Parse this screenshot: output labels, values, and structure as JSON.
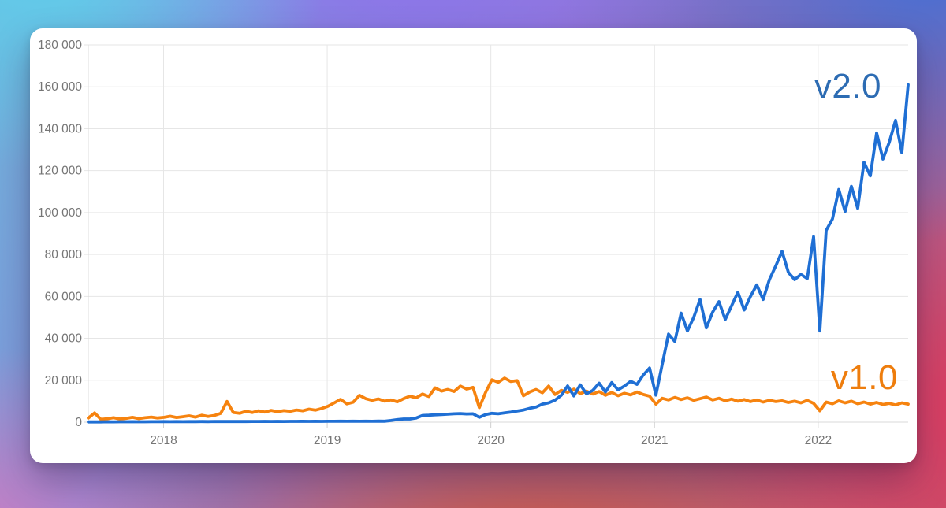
{
  "colors": {
    "v2_line": "#1f6fd4",
    "v2_label": "#2d6cb3",
    "v1_line": "#f6830f",
    "v1_label": "#ee7d0d",
    "grid": "#e6e6e6",
    "axis_boundary": "#dcdcdc",
    "tick_stub": "#cfcfcf",
    "axis_text": "#757575"
  },
  "chart_data": {
    "type": "line",
    "title": "",
    "xlabel": "",
    "ylabel": "",
    "grid": true,
    "legend_position": "inline labels at line ends (right side)",
    "xlim": [
      2017.54,
      2022.55
    ],
    "ylim": [
      0,
      180000
    ],
    "x_start": 2017.54,
    "x_step": 0.03854,
    "x_ticks": [
      {
        "value": 2018,
        "label": "2018"
      },
      {
        "value": 2019,
        "label": "2019"
      },
      {
        "value": 2020,
        "label": "2020"
      },
      {
        "value": 2021,
        "label": "2021"
      },
      {
        "value": 2022,
        "label": "2022"
      }
    ],
    "y_ticks": [
      {
        "value": 0,
        "label": "0"
      },
      {
        "value": 20000,
        "label": "20 000"
      },
      {
        "value": 40000,
        "label": "40 000"
      },
      {
        "value": 60000,
        "label": "60 000"
      },
      {
        "value": 80000,
        "label": "80 000"
      },
      {
        "value": 100000,
        "label": "100 000"
      },
      {
        "value": 120000,
        "label": "120 000"
      },
      {
        "value": 140000,
        "label": "140 000"
      },
      {
        "value": 160000,
        "label": "160 000"
      },
      {
        "value": 180000,
        "label": "180 000"
      }
    ],
    "series": [
      {
        "name": "v2.0",
        "color": "#1f6fd4",
        "label_color": "#2d6cb3",
        "values": [
          100,
          150,
          120,
          180,
          150,
          200,
          170,
          220,
          200,
          180,
          230,
          210,
          250,
          220,
          260,
          240,
          280,
          250,
          300,
          270,
          320,
          290,
          330,
          300,
          340,
          310,
          350,
          330,
          360,
          340,
          380,
          350,
          390,
          360,
          400,
          380,
          420,
          390,
          430,
          400,
          440,
          410,
          450,
          420,
          460,
          430,
          480,
          450,
          800,
          1200,
          1500,
          1500,
          2000,
          3200,
          3300,
          3500,
          3600,
          3800,
          4000,
          4100,
          3900,
          4000,
          2300,
          3600,
          4200,
          4000,
          4400,
          4800,
          5300,
          5800,
          6600,
          7200,
          8600,
          9200,
          10500,
          12800,
          17300,
          12500,
          17800,
          13500,
          15200,
          18600,
          14400,
          18900,
          15400,
          17200,
          19500,
          18000,
          22500,
          25800,
          12900,
          27500,
          42000,
          38500,
          52000,
          43500,
          50000,
          58500,
          45000,
          52500,
          57500,
          49000,
          55500,
          62000,
          53500,
          60000,
          65500,
          58500,
          68000,
          74500,
          81500,
          71500,
          68000,
          70500,
          68500,
          88500,
          43500,
          91500,
          97000,
          111000,
          100500,
          112500,
          102000,
          124000,
          117500,
          138000,
          125500,
          133500,
          144000,
          128500,
          161000
        ]
      },
      {
        "name": "v1.0",
        "color": "#f6830f",
        "label_color": "#ee7d0d",
        "values": [
          1900,
          4400,
          1300,
          1600,
          2100,
          1500,
          1800,
          2300,
          1700,
          2100,
          2400,
          2000,
          2300,
          2800,
          2200,
          2600,
          3000,
          2400,
          3300,
          2700,
          3200,
          4200,
          9900,
          4600,
          4200,
          5200,
          4600,
          5400,
          4800,
          5600,
          5000,
          5500,
          5200,
          5800,
          5400,
          6200,
          5700,
          6500,
          7600,
          9200,
          10900,
          8700,
          9500,
          12800,
          11200,
          10400,
          11100,
          10000,
          10600,
          9700,
          11200,
          12400,
          11600,
          13400,
          12200,
          16400,
          14800,
          15600,
          14600,
          17200,
          15800,
          16600,
          6900,
          14200,
          20200,
          19000,
          21000,
          19400,
          19800,
          12600,
          14400,
          15600,
          14000,
          17200,
          13200,
          15200,
          14200,
          15800,
          13600,
          14800,
          13400,
          14600,
          12800,
          14200,
          12600,
          13800,
          13000,
          14400,
          13200,
          12400,
          8600,
          11400,
          10600,
          11800,
          10800,
          11600,
          10400,
          11200,
          12000,
          10600,
          11400,
          10200,
          11000,
          10000,
          10800,
          9800,
          10600,
          9600,
          10400,
          9800,
          10200,
          9400,
          10000,
          9200,
          10400,
          9000,
          5400,
          9600,
          8800,
          10200,
          9200,
          10000,
          8800,
          9600,
          8600,
          9400,
          8400,
          9000,
          8200,
          9200,
          8600
        ]
      }
    ]
  }
}
